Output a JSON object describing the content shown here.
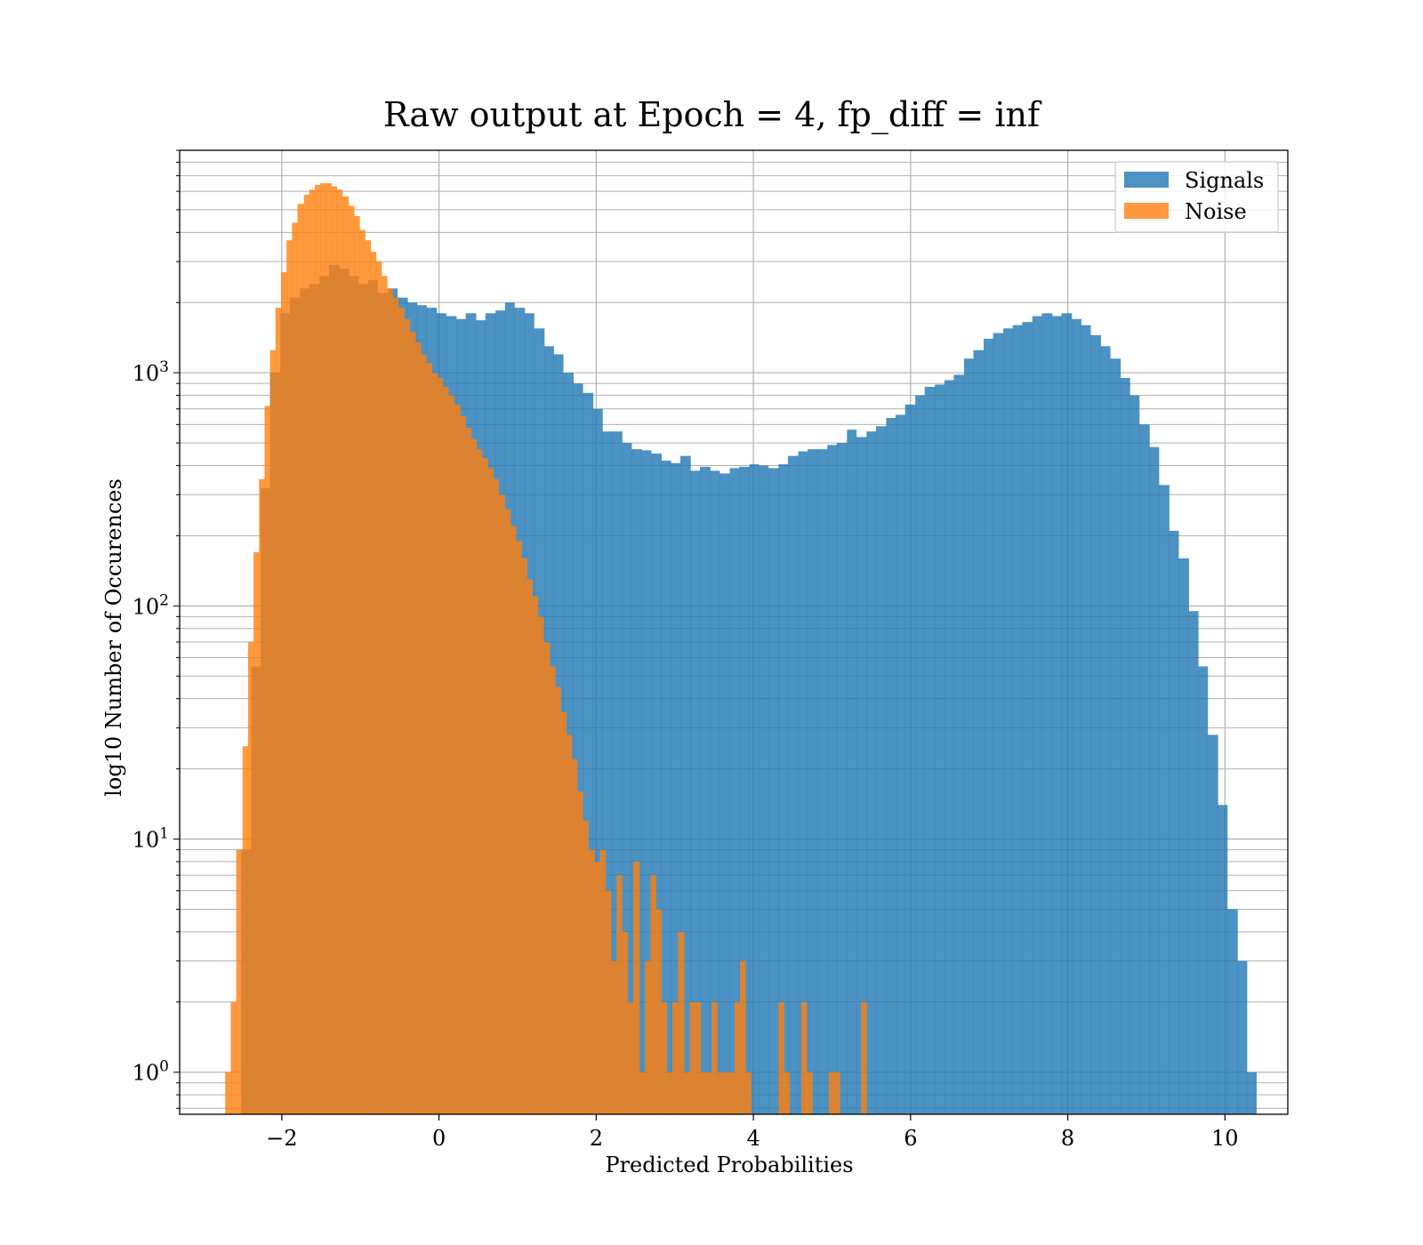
{
  "chart_data": {
    "type": "bar",
    "title": "Raw output at Epoch = 4, fp_diff = inf",
    "xlabel": "Predicted Probabilities",
    "ylabel": "log10 Number of Occurences",
    "yscale": "log",
    "xlim": [
      -3.3,
      10.8
    ],
    "ylim": [
      0.66,
      9000
    ],
    "grid": true,
    "legend_position": "top-right",
    "x_ticks": [
      {
        "value": -2,
        "label": "−2"
      },
      {
        "value": 0,
        "label": "0"
      },
      {
        "value": 2,
        "label": "2"
      },
      {
        "value": 4,
        "label": "4"
      },
      {
        "value": 6,
        "label": "6"
      },
      {
        "value": 8,
        "label": "8"
      },
      {
        "value": 10,
        "label": "10"
      }
    ],
    "y_ticks": [
      {
        "value": 1,
        "base": "10",
        "exp": "0"
      },
      {
        "value": 10,
        "base": "10",
        "exp": "1"
      },
      {
        "value": 100,
        "base": "10",
        "exp": "2"
      },
      {
        "value": 1000,
        "base": "10",
        "exp": "3"
      }
    ],
    "series": [
      {
        "name": "Signals",
        "color": "#1f77b4",
        "alpha": 0.8,
        "bins": [
          [
            -2.52,
            -2.39,
            9
          ],
          [
            -2.39,
            -2.27,
            55
          ],
          [
            -2.27,
            -2.15,
            320
          ],
          [
            -2.15,
            -2.02,
            1000
          ],
          [
            -2.02,
            -1.9,
            1800
          ],
          [
            -1.9,
            -1.77,
            2100
          ],
          [
            -1.77,
            -1.65,
            2300
          ],
          [
            -1.65,
            -1.52,
            2400
          ],
          [
            -1.52,
            -1.4,
            2600
          ],
          [
            -1.4,
            -1.27,
            2900
          ],
          [
            -1.27,
            -1.15,
            2800
          ],
          [
            -1.15,
            -1.03,
            2600
          ],
          [
            -1.03,
            -0.9,
            2400
          ],
          [
            -0.9,
            -0.78,
            2500
          ],
          [
            -0.78,
            -0.65,
            2200
          ],
          [
            -0.65,
            -0.53,
            2300
          ],
          [
            -0.53,
            -0.4,
            2100
          ],
          [
            -0.4,
            -0.28,
            2000
          ],
          [
            -0.28,
            -0.16,
            1950
          ],
          [
            -0.16,
            -0.03,
            1900
          ],
          [
            -0.03,
            0.09,
            1800
          ],
          [
            0.09,
            0.22,
            1750
          ],
          [
            0.22,
            0.34,
            1700
          ],
          [
            0.34,
            0.47,
            1800
          ],
          [
            0.47,
            0.59,
            1680
          ],
          [
            0.59,
            0.72,
            1800
          ],
          [
            0.72,
            0.84,
            1850
          ],
          [
            0.84,
            0.96,
            2000
          ],
          [
            0.96,
            1.09,
            1900
          ],
          [
            1.09,
            1.21,
            1800
          ],
          [
            1.21,
            1.34,
            1550
          ],
          [
            1.34,
            1.46,
            1300
          ],
          [
            1.46,
            1.58,
            1200
          ],
          [
            1.58,
            1.71,
            1000
          ],
          [
            1.71,
            1.83,
            900
          ],
          [
            1.83,
            1.96,
            820
          ],
          [
            1.96,
            2.08,
            700
          ],
          [
            2.08,
            2.2,
            560
          ],
          [
            2.2,
            2.33,
            560
          ],
          [
            2.33,
            2.45,
            500
          ],
          [
            2.45,
            2.58,
            470
          ],
          [
            2.58,
            2.7,
            465
          ],
          [
            2.7,
            2.83,
            450
          ],
          [
            2.83,
            2.95,
            420
          ],
          [
            2.95,
            3.07,
            410
          ],
          [
            3.07,
            3.2,
            440
          ],
          [
            3.2,
            3.32,
            380
          ],
          [
            3.32,
            3.45,
            395
          ],
          [
            3.45,
            3.57,
            380
          ],
          [
            3.57,
            3.7,
            370
          ],
          [
            3.7,
            3.82,
            390
          ],
          [
            3.82,
            3.95,
            395
          ],
          [
            3.95,
            4.07,
            405
          ],
          [
            4.07,
            4.19,
            400
          ],
          [
            4.19,
            4.32,
            390
          ],
          [
            4.32,
            4.44,
            405
          ],
          [
            4.44,
            4.57,
            440
          ],
          [
            4.57,
            4.69,
            460
          ],
          [
            4.69,
            4.82,
            470
          ],
          [
            4.82,
            4.94,
            470
          ],
          [
            4.94,
            5.06,
            490
          ],
          [
            5.06,
            5.19,
            500
          ],
          [
            5.19,
            5.31,
            570
          ],
          [
            5.31,
            5.44,
            530
          ],
          [
            5.44,
            5.56,
            560
          ],
          [
            5.56,
            5.69,
            590
          ],
          [
            5.69,
            5.81,
            640
          ],
          [
            5.81,
            5.93,
            660
          ],
          [
            5.93,
            6.06,
            730
          ],
          [
            6.06,
            6.18,
            800
          ],
          [
            6.18,
            6.31,
            870
          ],
          [
            6.31,
            6.43,
            890
          ],
          [
            6.43,
            6.55,
            930
          ],
          [
            6.55,
            6.68,
            980
          ],
          [
            6.68,
            6.8,
            1150
          ],
          [
            6.8,
            6.93,
            1250
          ],
          [
            6.93,
            7.05,
            1400
          ],
          [
            7.05,
            7.18,
            1480
          ],
          [
            7.18,
            7.3,
            1550
          ],
          [
            7.3,
            7.42,
            1600
          ],
          [
            7.42,
            7.55,
            1650
          ],
          [
            7.55,
            7.67,
            1750
          ],
          [
            7.67,
            7.8,
            1800
          ],
          [
            7.8,
            7.92,
            1750
          ],
          [
            7.92,
            8.05,
            1800
          ],
          [
            8.05,
            8.17,
            1700
          ],
          [
            8.17,
            8.29,
            1600
          ],
          [
            8.29,
            8.42,
            1450
          ],
          [
            8.42,
            8.54,
            1300
          ],
          [
            8.54,
            8.67,
            1150
          ],
          [
            8.67,
            8.79,
            950
          ],
          [
            8.79,
            8.91,
            800
          ],
          [
            8.91,
            9.04,
            600
          ],
          [
            9.04,
            9.16,
            480
          ],
          [
            9.16,
            9.29,
            330
          ],
          [
            9.29,
            9.41,
            210
          ],
          [
            9.41,
            9.54,
            160
          ],
          [
            9.54,
            9.66,
            95
          ],
          [
            9.66,
            9.78,
            55
          ],
          [
            9.78,
            9.91,
            28
          ],
          [
            9.91,
            10.03,
            14
          ],
          [
            10.03,
            10.16,
            5
          ],
          [
            10.16,
            10.28,
            3
          ],
          [
            10.28,
            10.4,
            1
          ]
        ]
      },
      {
        "name": "Noise",
        "color": "#ff7f0e",
        "alpha": 0.8,
        "bins": [
          [
            -2.72,
            -2.65,
            1
          ],
          [
            -2.65,
            -2.58,
            2
          ],
          [
            -2.58,
            -2.5,
            9
          ],
          [
            -2.5,
            -2.43,
            25
          ],
          [
            -2.43,
            -2.36,
            70
          ],
          [
            -2.36,
            -2.29,
            170
          ],
          [
            -2.29,
            -2.22,
            350
          ],
          [
            -2.22,
            -2.15,
            720
          ],
          [
            -2.15,
            -2.08,
            1250
          ],
          [
            -2.08,
            -2.01,
            1900
          ],
          [
            -2.01,
            -1.94,
            2700
          ],
          [
            -1.94,
            -1.87,
            3700
          ],
          [
            -1.87,
            -1.8,
            4400
          ],
          [
            -1.8,
            -1.72,
            5300
          ],
          [
            -1.72,
            -1.65,
            5800
          ],
          [
            -1.65,
            -1.58,
            6100
          ],
          [
            -1.58,
            -1.51,
            6400
          ],
          [
            -1.51,
            -1.44,
            6500
          ],
          [
            -1.44,
            -1.37,
            6500
          ],
          [
            -1.37,
            -1.3,
            6300
          ],
          [
            -1.3,
            -1.23,
            6100
          ],
          [
            -1.23,
            -1.15,
            5700
          ],
          [
            -1.15,
            -1.08,
            5200
          ],
          [
            -1.08,
            -1.01,
            4700
          ],
          [
            -1.01,
            -0.94,
            4100
          ],
          [
            -0.94,
            -0.87,
            3700
          ],
          [
            -0.87,
            -0.8,
            3300
          ],
          [
            -0.8,
            -0.73,
            3000
          ],
          [
            -0.73,
            -0.66,
            2600
          ],
          [
            -0.66,
            -0.59,
            2300
          ],
          [
            -0.59,
            -0.52,
            2100
          ],
          [
            -0.52,
            -0.44,
            1900
          ],
          [
            -0.44,
            -0.37,
            1700
          ],
          [
            -0.37,
            -0.3,
            1500
          ],
          [
            -0.3,
            -0.23,
            1350
          ],
          [
            -0.23,
            -0.16,
            1200
          ],
          [
            -0.16,
            -0.09,
            1100
          ],
          [
            -0.09,
            -0.02,
            1000
          ],
          [
            -0.02,
            0.05,
            950
          ],
          [
            0.05,
            0.12,
            870
          ],
          [
            0.12,
            0.19,
            800
          ],
          [
            0.19,
            0.27,
            730
          ],
          [
            0.27,
            0.34,
            650
          ],
          [
            0.34,
            0.41,
            580
          ],
          [
            0.41,
            0.48,
            520
          ],
          [
            0.48,
            0.55,
            470
          ],
          [
            0.55,
            0.62,
            430
          ],
          [
            0.62,
            0.69,
            390
          ],
          [
            0.69,
            0.76,
            350
          ],
          [
            0.76,
            0.84,
            300
          ],
          [
            0.84,
            0.91,
            260
          ],
          [
            0.91,
            0.98,
            220
          ],
          [
            0.98,
            1.05,
            190
          ],
          [
            1.05,
            1.12,
            160
          ],
          [
            1.12,
            1.19,
            130
          ],
          [
            1.19,
            1.26,
            110
          ],
          [
            1.26,
            1.33,
            90
          ],
          [
            1.33,
            1.41,
            70
          ],
          [
            1.41,
            1.48,
            55
          ],
          [
            1.48,
            1.55,
            45
          ],
          [
            1.55,
            1.62,
            35
          ],
          [
            1.62,
            1.69,
            28
          ],
          [
            1.69,
            1.76,
            22
          ],
          [
            1.76,
            1.83,
            16
          ],
          [
            1.83,
            1.9,
            12
          ],
          [
            1.9,
            1.98,
            9
          ],
          [
            1.98,
            2.05,
            8
          ],
          [
            2.05,
            2.12,
            9
          ],
          [
            2.12,
            2.19,
            6
          ],
          [
            2.19,
            2.26,
            3
          ],
          [
            2.26,
            2.33,
            7
          ],
          [
            2.33,
            2.4,
            4
          ],
          [
            2.4,
            2.47,
            2
          ],
          [
            2.47,
            2.55,
            8
          ],
          [
            2.55,
            2.62,
            1
          ],
          [
            2.62,
            2.69,
            3
          ],
          [
            2.69,
            2.76,
            7
          ],
          [
            2.76,
            2.83,
            5
          ],
          [
            2.83,
            2.9,
            2
          ],
          [
            2.9,
            2.97,
            1
          ],
          [
            2.97,
            3.04,
            2
          ],
          [
            3.04,
            3.12,
            4
          ],
          [
            3.12,
            3.19,
            1
          ],
          [
            3.19,
            3.26,
            2
          ],
          [
            3.26,
            3.33,
            2
          ],
          [
            3.33,
            3.4,
            1
          ],
          [
            3.4,
            3.47,
            1
          ],
          [
            3.47,
            3.54,
            2
          ],
          [
            3.54,
            3.61,
            1
          ],
          [
            3.61,
            3.68,
            1
          ],
          [
            3.68,
            3.76,
            1
          ],
          [
            3.76,
            3.83,
            2
          ],
          [
            3.83,
            3.9,
            3
          ],
          [
            3.9,
            3.97,
            1
          ],
          [
            4.32,
            4.39,
            2
          ],
          [
            4.39,
            4.46,
            1
          ],
          [
            4.61,
            4.68,
            2
          ],
          [
            4.68,
            4.75,
            1
          ],
          [
            4.96,
            5.03,
            1
          ],
          [
            5.03,
            5.1,
            1
          ],
          [
            5.37,
            5.44,
            2
          ]
        ]
      }
    ]
  }
}
